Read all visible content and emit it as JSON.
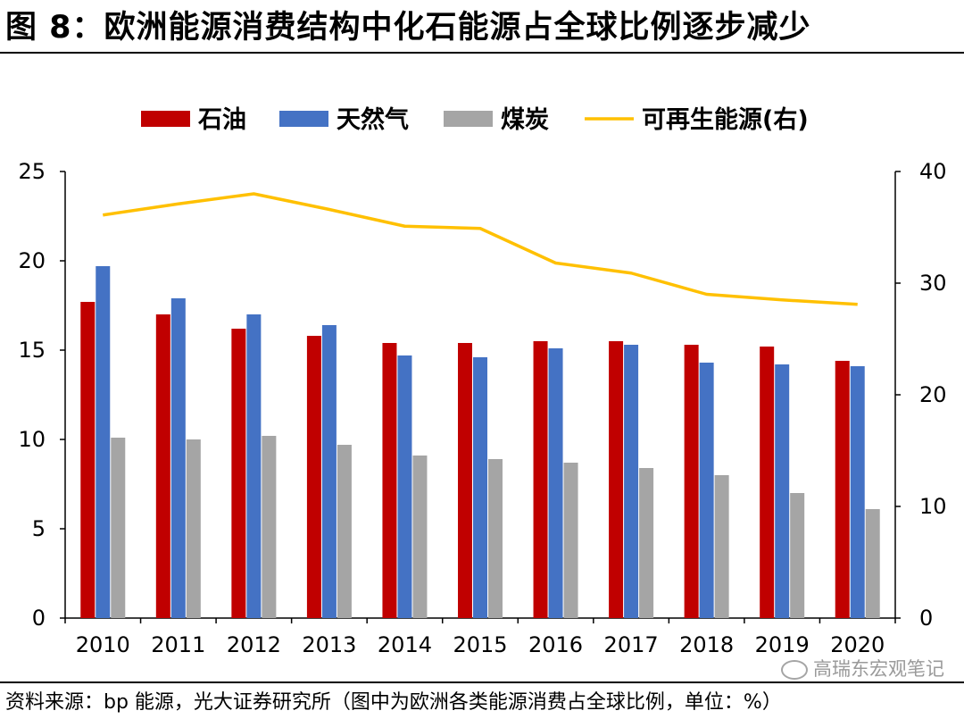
{
  "header": {
    "title": "图 8：欧洲能源消费结构中化石能源占全球比例逐步减少"
  },
  "footer": {
    "source": "资料来源：bp 能源，光大证券研究所（图中为欧洲各类能源消费占全球比例，单位：%）",
    "watermark": "高瑞东宏观笔记"
  },
  "chart_data": {
    "type": "bar",
    "categories": [
      "2010",
      "2011",
      "2012",
      "2013",
      "2014",
      "2015",
      "2016",
      "2017",
      "2018",
      "2019",
      "2020"
    ],
    "series": [
      {
        "name": "石油",
        "type": "bar",
        "axis": "left",
        "color": "#c00000",
        "values": [
          17.7,
          17.0,
          16.2,
          15.8,
          15.4,
          15.4,
          15.5,
          15.5,
          15.3,
          15.2,
          14.4
        ]
      },
      {
        "name": "天然气",
        "type": "bar",
        "axis": "left",
        "color": "#4472c4",
        "values": [
          19.7,
          17.9,
          17.0,
          16.4,
          14.7,
          14.6,
          15.1,
          15.3,
          14.3,
          14.2,
          14.1
        ]
      },
      {
        "name": "煤炭",
        "type": "bar",
        "axis": "left",
        "color": "#a5a5a5",
        "values": [
          10.1,
          10.0,
          10.2,
          9.7,
          9.1,
          8.9,
          8.7,
          8.4,
          8.0,
          7.0,
          6.1
        ]
      },
      {
        "name": "可再生能源(右)",
        "type": "line",
        "axis": "right",
        "color": "#ffc000",
        "values": [
          36.1,
          37.1,
          38.0,
          36.6,
          35.1,
          34.9,
          31.8,
          30.9,
          29.0,
          28.5,
          28.1
        ]
      }
    ],
    "y_left": {
      "min": 0,
      "max": 25,
      "ticks": [
        0,
        5,
        10,
        15,
        20,
        25
      ]
    },
    "y_right": {
      "min": 0,
      "max": 40,
      "ticks": [
        0,
        10,
        20,
        30,
        40
      ]
    },
    "legend_position": "top",
    "grid": false
  }
}
